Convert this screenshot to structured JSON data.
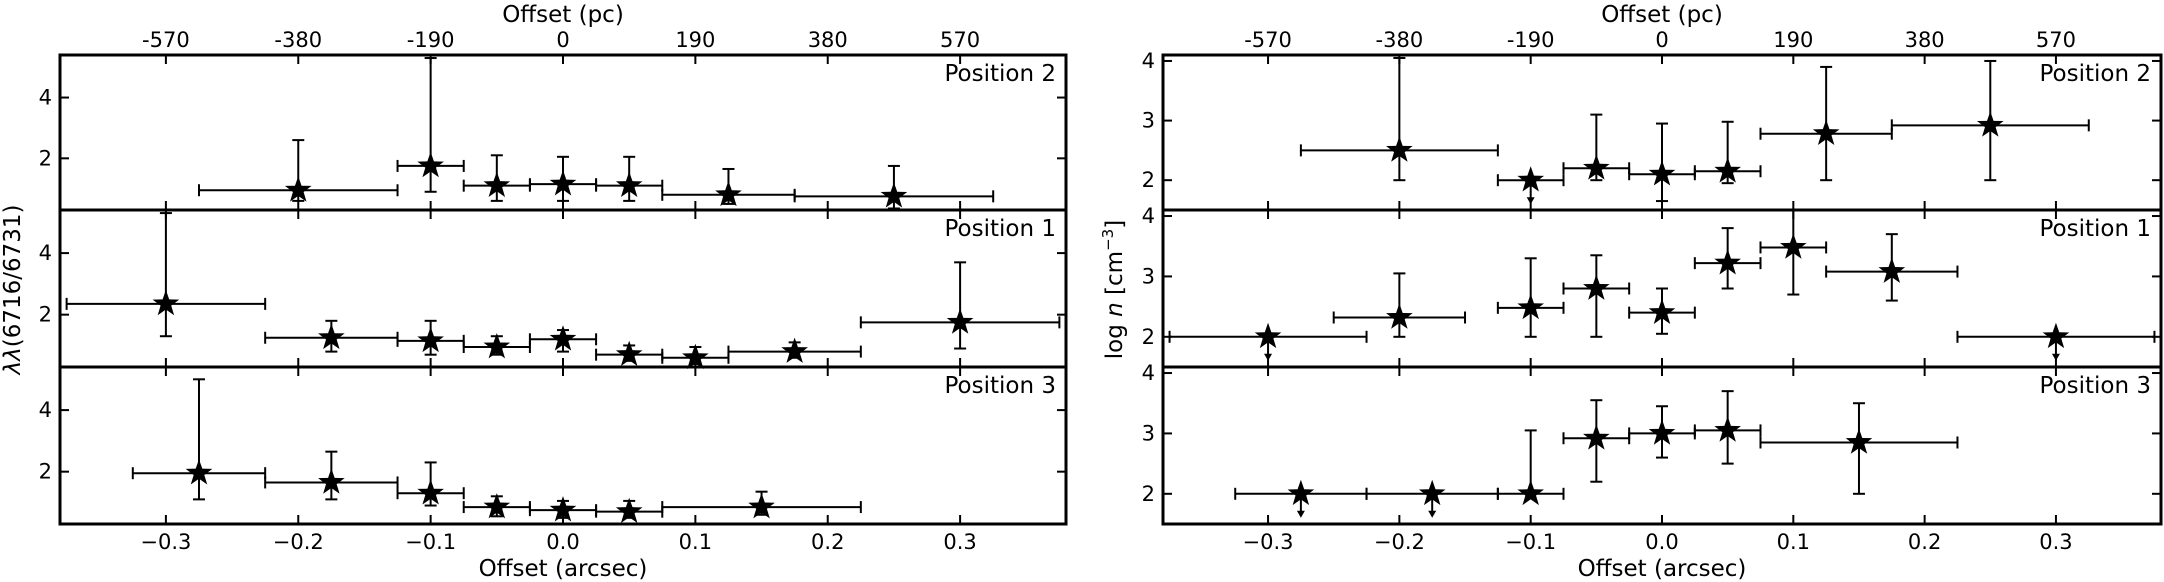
{
  "chart_data": [
    {
      "type": "scatter",
      "id": "left",
      "ylabel_prefix": "λλ",
      "ylabel_rest": "(6716/6731)",
      "xlabel": "Offset (arcsec)",
      "x2label": "Offset (pc)",
      "xlim": [
        -0.38,
        0.38
      ],
      "x_ticks": [
        -0.3,
        -0.2,
        -0.1,
        0.0,
        0.1,
        0.2,
        0.3
      ],
      "x_tick_labels": [
        "−0.3",
        "−0.2",
        "−0.1",
        "0.0",
        "0.1",
        "0.2",
        "0.3"
      ],
      "x2_ticks": [
        -0.3,
        -0.2,
        -0.1,
        0.0,
        0.1,
        0.2,
        0.3
      ],
      "x2_tick_labels": [
        "-570",
        "-380",
        "-190",
        "0",
        "190",
        "380",
        "570"
      ],
      "panels": [
        {
          "label": "Position 2",
          "ylim": [
            0.3,
            5.4
          ],
          "y_ticks": [
            2,
            4
          ],
          "y_tick_labels": [
            "2",
            "4"
          ],
          "points": [
            {
              "x": -0.2,
              "y": 0.95,
              "xerr": 0.075,
              "ylo": 0.6,
              "yhi": 2.6
            },
            {
              "x": -0.1,
              "y": 1.75,
              "xerr": 0.025,
              "ylo": 0.9,
              "yhi": 5.3
            },
            {
              "x": -0.05,
              "y": 1.1,
              "xerr": 0.025,
              "ylo": 0.6,
              "yhi": 2.1
            },
            {
              "x": 0.0,
              "y": 1.15,
              "xerr": 0.025,
              "ylo": 0.6,
              "yhi": 2.05
            },
            {
              "x": 0.05,
              "y": 1.1,
              "xerr": 0.025,
              "ylo": 0.6,
              "yhi": 2.05
            },
            {
              "x": 0.125,
              "y": 0.8,
              "xerr": 0.05,
              "ylo": 0.5,
              "yhi": 1.65
            },
            {
              "x": 0.25,
              "y": 0.75,
              "xerr": 0.075,
              "ylo": 0.35,
              "yhi": 1.75
            }
          ]
        },
        {
          "label": "Position 1",
          "ylim": [
            0.3,
            5.4
          ],
          "y_ticks": [
            2,
            4
          ],
          "y_tick_labels": [
            "2",
            "4"
          ],
          "points": [
            {
              "x": -0.3,
              "y": 2.35,
              "xerr": 0.075,
              "ylo": 1.3,
              "yhi": 5.3
            },
            {
              "x": -0.175,
              "y": 1.25,
              "xerr": 0.05,
              "ylo": 0.8,
              "yhi": 1.8
            },
            {
              "x": -0.1,
              "y": 1.15,
              "xerr": 0.025,
              "ylo": 0.7,
              "yhi": 1.8
            },
            {
              "x": -0.05,
              "y": 0.95,
              "xerr": 0.025,
              "ylo": 0.7,
              "yhi": 1.3
            },
            {
              "x": 0.0,
              "y": 1.2,
              "xerr": 0.025,
              "ylo": 0.8,
              "yhi": 1.5
            },
            {
              "x": 0.05,
              "y": 0.7,
              "xerr": 0.025,
              "ylo": 0.5,
              "yhi": 1.0
            },
            {
              "x": 0.1,
              "y": 0.6,
              "xerr": 0.025,
              "ylo": 0.4,
              "yhi": 0.95
            },
            {
              "x": 0.175,
              "y": 0.8,
              "xerr": 0.05,
              "ylo": 0.6,
              "yhi": 1.1
            },
            {
              "x": 0.3,
              "y": 1.75,
              "xerr": 0.075,
              "ylo": 0.9,
              "yhi": 3.7
            }
          ]
        },
        {
          "label": "Position 3",
          "ylim": [
            0.3,
            5.4
          ],
          "y_ticks": [
            2,
            4
          ],
          "y_tick_labels": [
            "2",
            "4"
          ],
          "points": [
            {
              "x": -0.275,
              "y": 1.95,
              "xerr": 0.05,
              "ylo": 1.1,
              "yhi": 5.0
            },
            {
              "x": -0.175,
              "y": 1.65,
              "xerr": 0.05,
              "ylo": 1.1,
              "yhi": 2.65
            },
            {
              "x": -0.1,
              "y": 1.3,
              "xerr": 0.025,
              "ylo": 0.9,
              "yhi": 2.3
            },
            {
              "x": -0.05,
              "y": 0.85,
              "xerr": 0.025,
              "ylo": 0.55,
              "yhi": 1.2
            },
            {
              "x": 0.0,
              "y": 0.75,
              "xerr": 0.025,
              "ylo": 0.5,
              "yhi": 1.05
            },
            {
              "x": 0.05,
              "y": 0.7,
              "xerr": 0.025,
              "ylo": 0.5,
              "yhi": 1.05
            },
            {
              "x": 0.15,
              "y": 0.85,
              "xerr": 0.075,
              "ylo": 0.6,
              "yhi": 1.35
            }
          ]
        }
      ]
    },
    {
      "type": "scatter",
      "id": "right",
      "ylabel_prefix": "log ",
      "ylabel_italic": "n",
      "ylabel_rest": " [cm",
      "ylabel_sup": "−3",
      "ylabel_end": "]",
      "xlabel": "Offset (arcsec)",
      "x2label": "Offset (pc)",
      "xlim": [
        -0.38,
        0.38
      ],
      "x_ticks": [
        -0.3,
        -0.2,
        -0.1,
        0.0,
        0.1,
        0.2,
        0.3
      ],
      "x_tick_labels": [
        "−0.3",
        "−0.2",
        "−0.1",
        "0.0",
        "0.1",
        "0.2",
        "0.3"
      ],
      "x2_ticks": [
        -0.3,
        -0.2,
        -0.1,
        0.0,
        0.1,
        0.2,
        0.3
      ],
      "x2_tick_labels": [
        "-570",
        "-380",
        "-190",
        "0",
        "190",
        "380",
        "570"
      ],
      "panels": [
        {
          "label": "Position 2",
          "ylim": [
            1.5,
            4.1
          ],
          "y_ticks": [
            2,
            3,
            4
          ],
          "y_tick_labels": [
            "2",
            "3",
            "4"
          ],
          "points": [
            {
              "x": -0.2,
              "y": 2.5,
              "xerr": 0.075,
              "ylo": 2.0,
              "yhi": 4.05
            },
            {
              "x": -0.1,
              "y": 2.0,
              "xerr": 0.025,
              "upper_limit": true
            },
            {
              "x": -0.05,
              "y": 2.2,
              "xerr": 0.025,
              "ylo": 2.0,
              "yhi": 3.1
            },
            {
              "x": 0.0,
              "y": 2.1,
              "xerr": 0.025,
              "ylo": 1.65,
              "yhi": 2.95
            },
            {
              "x": 0.05,
              "y": 2.15,
              "xerr": 0.025,
              "ylo": 1.95,
              "yhi": 2.98
            },
            {
              "x": 0.125,
              "y": 2.78,
              "xerr": 0.05,
              "ylo": 2.0,
              "yhi": 3.9
            },
            {
              "x": 0.25,
              "y": 2.92,
              "xerr": 0.075,
              "ylo": 2.0,
              "yhi": 4.0
            }
          ]
        },
        {
          "label": "Position 1",
          "ylim": [
            1.5,
            4.1
          ],
          "y_ticks": [
            2,
            3,
            4
          ],
          "y_tick_labels": [
            "2",
            "3",
            "4"
          ],
          "points": [
            {
              "x": -0.3,
              "y": 2.0,
              "xerr": 0.075,
              "upper_limit": true
            },
            {
              "x": -0.2,
              "y": 2.32,
              "xerr": 0.05,
              "ylo": 2.0,
              "yhi": 3.05
            },
            {
              "x": -0.1,
              "y": 2.48,
              "xerr": 0.025,
              "ylo": 2.0,
              "yhi": 3.3
            },
            {
              "x": -0.05,
              "y": 2.8,
              "xerr": 0.025,
              "ylo": 2.0,
              "yhi": 3.35
            },
            {
              "x": 0.0,
              "y": 2.4,
              "xerr": 0.025,
              "ylo": 2.05,
              "yhi": 2.8
            },
            {
              "x": 0.05,
              "y": 3.22,
              "xerr": 0.025,
              "ylo": 2.8,
              "yhi": 3.8
            },
            {
              "x": 0.1,
              "y": 3.48,
              "xerr": 0.025,
              "ylo": 2.7,
              "yhi": 4.1
            },
            {
              "x": 0.175,
              "y": 3.08,
              "xerr": 0.05,
              "ylo": 2.6,
              "yhi": 3.7
            },
            {
              "x": 0.3,
              "y": 2.0,
              "xerr": 0.075,
              "upper_limit": true
            }
          ]
        },
        {
          "label": "Position 3",
          "ylim": [
            1.5,
            4.1
          ],
          "y_ticks": [
            2,
            3,
            4
          ],
          "y_tick_labels": [
            "2",
            "3",
            "4"
          ],
          "points": [
            {
              "x": -0.275,
              "y": 2.0,
              "xerr": 0.05,
              "upper_limit": true
            },
            {
              "x": -0.175,
              "y": 2.0,
              "xerr": 0.05,
              "upper_limit": true
            },
            {
              "x": -0.1,
              "y": 2.0,
              "xerr": 0.025,
              "ylo": 2.0,
              "yhi": 3.05
            },
            {
              "x": -0.05,
              "y": 2.92,
              "xerr": 0.025,
              "ylo": 2.2,
              "yhi": 3.55
            },
            {
              "x": 0.0,
              "y": 3.0,
              "xerr": 0.025,
              "ylo": 2.6,
              "yhi": 3.45
            },
            {
              "x": 0.05,
              "y": 3.05,
              "xerr": 0.025,
              "ylo": 2.5,
              "yhi": 3.7
            },
            {
              "x": 0.15,
              "y": 2.85,
              "xerr": 0.075,
              "ylo": 2.0,
              "yhi": 3.5
            }
          ]
        }
      ]
    }
  ]
}
